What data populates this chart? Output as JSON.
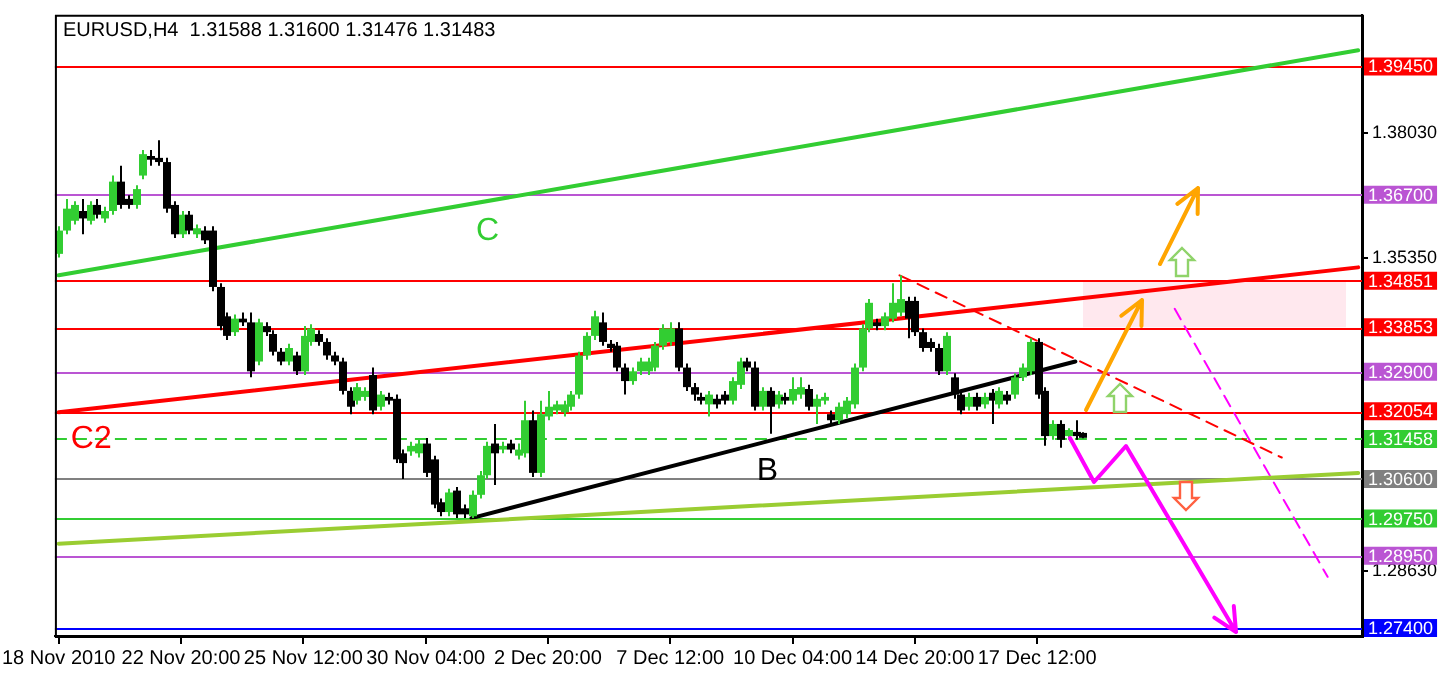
{
  "chart_data": {
    "type": "candlestick",
    "title": "EURUSD,H4  1.31588 1.31600 1.31476 1.31483",
    "categories": [
      "18 Nov 2010",
      null,
      null,
      null,
      null,
      null,
      null,
      null,
      null,
      null,
      null,
      null,
      null,
      null,
      null,
      null,
      "22 Nov 20:00",
      null,
      null,
      null,
      null,
      null,
      null,
      null,
      null,
      null,
      null,
      null,
      null,
      null,
      null,
      null,
      "25 Nov 12:00",
      null,
      null,
      null,
      null,
      null,
      null,
      null,
      null,
      null,
      null,
      null,
      null,
      null,
      null,
      null,
      "30 Nov 04:00",
      null,
      null,
      null,
      null,
      null,
      null,
      null,
      null,
      null,
      null,
      null,
      null,
      null,
      null,
      null,
      "2 Dec 20:00",
      null,
      null,
      null,
      null,
      null,
      null,
      null,
      null,
      null,
      null,
      null,
      null,
      null,
      null,
      null,
      "7 Dec 12:00",
      null,
      null,
      null,
      null,
      null,
      null,
      null,
      null,
      null,
      null,
      null,
      null,
      null,
      null,
      null,
      "10 Dec 04:00",
      null,
      null,
      null,
      null,
      null,
      null,
      null,
      null,
      null,
      null,
      null,
      null,
      null,
      null,
      null,
      "14 Dec 20:00",
      null,
      null,
      null,
      null,
      null,
      null,
      null,
      null,
      null,
      null,
      null,
      null,
      null,
      null,
      null,
      "17 Dec 12:00",
      null,
      null,
      null,
      null,
      null,
      null,
      null,
      null,
      null,
      null,
      null,
      null,
      null,
      null,
      null,
      null,
      null,
      null,
      null,
      null,
      null,
      null,
      null,
      null,
      null,
      null,
      null,
      null,
      null,
      null,
      null,
      null,
      null,
      null,
      null,
      null,
      null,
      null,
      null,
      null,
      null,
      null
    ],
    "ohlc": [
      [
        1.3543,
        1.3602,
        1.3535,
        1.3593
      ],
      [
        1.3593,
        1.3661,
        1.3585,
        1.364
      ],
      [
        1.3614,
        1.3656,
        1.3606,
        1.3648
      ],
      [
        1.3635,
        1.3661,
        1.3585,
        1.3619
      ],
      [
        1.3614,
        1.3656,
        1.3606,
        1.3648
      ],
      [
        1.3648,
        1.3661,
        1.3619,
        1.3627
      ],
      [
        1.3619,
        1.3644,
        1.361,
        1.3635
      ],
      [
        1.3635,
        1.3711,
        1.3627,
        1.3698
      ],
      [
        1.3698,
        1.3732,
        1.364,
        1.3648
      ],
      [
        1.3661,
        1.3669,
        1.364,
        1.3648
      ],
      [
        1.3648,
        1.369,
        1.364,
        1.3682
      ],
      [
        1.3711,
        1.3766,
        1.3703,
        1.3757
      ],
      [
        1.3753,
        1.3766,
        1.3732,
        1.3745
      ],
      [
        1.3749,
        1.3787,
        1.3732,
        1.374
      ],
      [
        1.374,
        1.3749,
        1.3631,
        1.364
      ],
      [
        1.3648,
        1.3656,
        1.3577,
        1.3585
      ],
      [
        1.3585,
        1.3635,
        1.3577,
        1.3627
      ],
      [
        1.3627,
        1.3635,
        1.3585,
        1.3593
      ],
      [
        1.3585,
        1.3606,
        1.3577,
        1.3598
      ],
      [
        1.3593,
        1.3602,
        1.3564,
        1.3572
      ],
      [
        1.3593,
        1.3602,
        1.3463,
        1.3472
      ],
      [
        1.3472,
        1.348,
        1.3379,
        1.3388
      ],
      [
        1.3409,
        1.3417,
        1.3358,
        1.3367
      ],
      [
        1.3375,
        1.3413,
        1.3367,
        1.3404
      ],
      [
        1.3404,
        1.3417,
        1.3388,
        1.3396
      ],
      [
        1.3396,
        1.3417,
        1.3278,
        1.3291
      ],
      [
        1.3312,
        1.3404,
        1.3304,
        1.3396
      ],
      [
        1.3388,
        1.3396,
        1.3367,
        1.3375
      ],
      [
        1.3371,
        1.3379,
        1.3325,
        1.3333
      ],
      [
        1.3333,
        1.3341,
        1.3304,
        1.3312
      ],
      [
        1.3312,
        1.335,
        1.3304,
        1.3341
      ],
      [
        1.3325,
        1.3333,
        1.3283,
        1.3291
      ],
      [
        1.3291,
        1.3388,
        1.3283,
        1.3367
      ],
      [
        1.3354,
        1.3392,
        1.3346,
        1.3383
      ],
      [
        1.3371,
        1.3379,
        1.3346,
        1.3354
      ],
      [
        1.3354,
        1.3362,
        1.3316,
        1.3325
      ],
      [
        1.3325,
        1.3333,
        1.3304,
        1.3312
      ],
      [
        1.3312,
        1.332,
        1.3241,
        1.3249
      ],
      [
        1.3249,
        1.3257,
        1.3199,
        1.3215
      ],
      [
        1.3228,
        1.3266,
        1.322,
        1.3257
      ],
      [
        1.3236,
        1.3257,
        1.3228,
        1.3249
      ],
      [
        1.3283,
        1.3299,
        1.3199,
        1.3207
      ],
      [
        1.3215,
        1.3249,
        1.3207,
        1.3241
      ],
      [
        1.3236,
        1.3245,
        1.322,
        1.3228
      ],
      [
        1.3232,
        1.3241,
        1.3094,
        1.3102
      ],
      [
        1.3115,
        1.3123,
        1.306,
        1.3094
      ],
      [
        1.3119,
        1.314,
        1.311,
        1.3131
      ],
      [
        1.3115,
        1.3144,
        1.3106,
        1.3136
      ],
      [
        1.3136,
        1.3148,
        1.3064,
        1.3073
      ],
      [
        1.3102,
        1.311,
        1.2997,
        1.3005
      ],
      [
        1.301,
        1.3018,
        1.298,
        1.2989
      ],
      [
        1.2989,
        1.3039,
        1.298,
        1.3031
      ],
      [
        1.3035,
        1.3043,
        1.2976,
        1.2984
      ],
      [
        1.2997,
        1.3005,
        1.2976,
        1.2984
      ],
      [
        1.298,
        1.3035,
        1.2976,
        1.3026
      ],
      [
        1.3026,
        1.3077,
        1.3018,
        1.3068
      ],
      [
        1.3068,
        1.314,
        1.306,
        1.3131
      ],
      [
        1.3136,
        1.3178,
        1.3047,
        1.3115
      ],
      [
        1.3123,
        1.314,
        1.3115,
        1.3131
      ],
      [
        1.3136,
        1.3144,
        1.3115,
        1.3123
      ],
      [
        1.311,
        1.3136,
        1.3102,
        1.3123
      ],
      [
        1.3115,
        1.3228,
        1.3106,
        1.3186
      ],
      [
        1.3186,
        1.3207,
        1.3064,
        1.3073
      ],
      [
        1.3073,
        1.3228,
        1.3064,
        1.3199
      ],
      [
        1.3194,
        1.3249,
        1.3186,
        1.3215
      ],
      [
        1.3207,
        1.3228,
        1.3199,
        1.322
      ],
      [
        1.3203,
        1.3228,
        1.3194,
        1.322
      ],
      [
        1.3215,
        1.3249,
        1.3207,
        1.3241
      ],
      [
        1.3241,
        1.3333,
        1.3232,
        1.3325
      ],
      [
        1.3325,
        1.3375,
        1.3316,
        1.3367
      ],
      [
        1.3367,
        1.3421,
        1.3358,
        1.3409
      ],
      [
        1.3396,
        1.3417,
        1.3346,
        1.3354
      ],
      [
        1.335,
        1.3358,
        1.3333,
        1.3341
      ],
      [
        1.3346,
        1.3354,
        1.3291,
        1.3299
      ],
      [
        1.3299,
        1.3308,
        1.3241,
        1.327
      ],
      [
        1.327,
        1.3299,
        1.3262,
        1.3291
      ],
      [
        1.3291,
        1.332,
        1.3283,
        1.3312
      ],
      [
        1.3291,
        1.332,
        1.3283,
        1.3312
      ],
      [
        1.3299,
        1.3354,
        1.3291,
        1.3346
      ],
      [
        1.3346,
        1.3392,
        1.3337,
        1.3383
      ],
      [
        1.3354,
        1.3396,
        1.3346,
        1.3383
      ],
      [
        1.3383,
        1.3396,
        1.3291,
        1.3299
      ],
      [
        1.3299,
        1.3308,
        1.3249,
        1.3257
      ],
      [
        1.3257,
        1.3266,
        1.3228,
        1.3241
      ],
      [
        1.3236,
        1.3245,
        1.322,
        1.3228
      ],
      [
        1.322,
        1.3249,
        1.3194,
        1.3241
      ],
      [
        1.3232,
        1.3241,
        1.3211,
        1.322
      ],
      [
        1.3241,
        1.3249,
        1.322,
        1.3228
      ],
      [
        1.3228,
        1.3278,
        1.322,
        1.327
      ],
      [
        1.3262,
        1.332,
        1.3253,
        1.3312
      ],
      [
        1.3312,
        1.332,
        1.3291,
        1.3299
      ],
      [
        1.3299,
        1.3312,
        1.3207,
        1.3215
      ],
      [
        1.3215,
        1.3257,
        1.3207,
        1.3249
      ],
      [
        1.3249,
        1.3257,
        1.3157,
        1.3215
      ],
      [
        1.322,
        1.3249,
        1.3211,
        1.3241
      ],
      [
        1.3236,
        1.3245,
        1.322,
        1.3228
      ],
      [
        1.3228,
        1.3278,
        1.322,
        1.3253
      ],
      [
        1.3241,
        1.3278,
        1.3232,
        1.3257
      ],
      [
        1.3253,
        1.3262,
        1.3207,
        1.3215
      ],
      [
        1.3215,
        1.3241,
        1.3178,
        1.3232
      ],
      [
        1.3228,
        1.3245,
        1.322,
        1.3236
      ],
      [
        1.3199,
        1.3207,
        1.3178,
        1.3186
      ],
      [
        1.3186,
        1.3224,
        1.3178,
        1.3215
      ],
      [
        1.3199,
        1.3236,
        1.319,
        1.3228
      ],
      [
        1.322,
        1.3308,
        1.3211,
        1.3299
      ],
      [
        1.3299,
        1.3392,
        1.3291,
        1.3383
      ],
      [
        1.3383,
        1.3446,
        1.3375,
        1.3438
      ],
      [
        1.3396,
        1.3404,
        1.3379,
        1.3388
      ],
      [
        1.3388,
        1.3417,
        1.3379,
        1.3409
      ],
      [
        1.3404,
        1.348,
        1.3396,
        1.3438
      ],
      [
        1.3417,
        1.3497,
        1.3409,
        1.3446
      ],
      [
        1.3442,
        1.3451,
        1.3362,
        1.3404
      ],
      [
        1.3442,
        1.3451,
        1.3367,
        1.3375
      ],
      [
        1.3375,
        1.3383,
        1.3333,
        1.3341
      ],
      [
        1.3354,
        1.3362,
        1.3333,
        1.3341
      ],
      [
        1.3341,
        1.335,
        1.3283,
        1.3291
      ],
      [
        1.3291,
        1.3375,
        1.3283,
        1.3367
      ],
      [
        1.3278,
        1.3287,
        1.3232,
        1.3241
      ],
      [
        1.3241,
        1.3249,
        1.3199,
        1.3207
      ],
      [
        1.3215,
        1.3245,
        1.3207,
        1.3236
      ],
      [
        1.3236,
        1.3245,
        1.3207,
        1.3215
      ],
      [
        1.322,
        1.3245,
        1.3211,
        1.3236
      ],
      [
        1.3245,
        1.3253,
        1.3178,
        1.3228
      ],
      [
        1.322,
        1.3257,
        1.3211,
        1.3249
      ],
      [
        1.3241,
        1.3249,
        1.322,
        1.3228
      ],
      [
        1.3241,
        1.3287,
        1.3232,
        1.3278
      ],
      [
        1.3278,
        1.3308,
        1.327,
        1.3299
      ],
      [
        1.3291,
        1.3362,
        1.3283,
        1.3354
      ],
      [
        1.3354,
        1.3362,
        1.3232,
        1.3241
      ],
      [
        1.3249,
        1.3257,
        1.3131,
        1.3152
      ],
      [
        1.3152,
        1.3186,
        1.3144,
        1.3178
      ],
      [
        1.3178,
        1.3186,
        1.3127,
        1.3144
      ],
      [
        1.3152,
        1.3169,
        1.3144,
        1.3165
      ],
      [
        1.3161,
        1.3186,
        1.3144,
        1.3152
      ],
      [
        1.31588,
        1.316,
        1.31476,
        1.31483
      ],
      null,
      null,
      null,
      null,
      null,
      null,
      null,
      null,
      null,
      null,
      null,
      null,
      null,
      null,
      null,
      null,
      null,
      null,
      null,
      null,
      null,
      null,
      null,
      null,
      null,
      null,
      null,
      null,
      null,
      null,
      null,
      null,
      null,
      null,
      null,
      null
    ],
    "colors": [
      "#32cd32",
      "#32cd32",
      "#32cd32",
      "#000000",
      "#32cd32",
      "#000000",
      "#32cd32",
      "#32cd32",
      "#000000",
      "#000000",
      "#32cd32",
      "#32cd32",
      "#000000",
      "#000000",
      "#000000",
      "#000000",
      "#32cd32",
      "#000000",
      "#32cd32",
      "#000000",
      "#000000",
      "#000000",
      "#000000",
      "#32cd32",
      "#000000",
      "#000000",
      "#32cd32",
      "#000000",
      "#000000",
      "#000000",
      "#32cd32",
      "#000000",
      "#32cd32",
      "#32cd32",
      "#000000",
      "#000000",
      "#000000",
      "#000000",
      "#000000",
      "#32cd32",
      "#32cd32",
      "#000000",
      "#32cd32",
      "#000000",
      "#000000",
      "#000000",
      "#32cd32",
      "#32cd32",
      "#000000",
      "#000000",
      "#000000",
      "#32cd32",
      "#000000",
      "#000000",
      "#32cd32",
      "#32cd32",
      "#32cd32",
      "#000000",
      "#32cd32",
      "#000000",
      "#32cd32",
      "#32cd32",
      "#000000",
      "#32cd32",
      "#32cd32",
      "#32cd32",
      "#32cd32",
      "#32cd32",
      "#32cd32",
      "#32cd32",
      "#32cd32",
      "#000000",
      "#000000",
      "#000000",
      "#000000",
      "#32cd32",
      "#32cd32",
      "#32cd32",
      "#32cd32",
      "#32cd32",
      "#32cd32",
      "#000000",
      "#000000",
      "#000000",
      "#000000",
      "#32cd32",
      "#000000",
      "#000000",
      "#32cd32",
      "#32cd32",
      "#000000",
      "#000000",
      "#32cd32",
      "#000000",
      "#32cd32",
      "#000000",
      "#32cd32",
      "#32cd32",
      "#000000",
      "#32cd32",
      "#32cd32",
      "#000000",
      "#32cd32",
      "#32cd32",
      "#32cd32",
      "#32cd32",
      "#32cd32",
      "#000000",
      "#32cd32",
      "#32cd32",
      "#32cd32",
      "#000000",
      "#000000",
      "#000000",
      "#000000",
      "#000000",
      "#32cd32",
      "#000000",
      "#000000",
      "#32cd32",
      "#000000",
      "#32cd32",
      "#000000",
      "#32cd32",
      "#000000",
      "#32cd32",
      "#32cd32",
      "#32cd32",
      "#000000",
      "#000000",
      "#32cd32",
      "#000000",
      "#32cd32",
      "#000000",
      "#000000",
      null,
      null,
      null,
      null,
      null,
      null,
      null,
      null,
      null,
      null,
      null,
      null,
      null,
      null,
      null,
      null,
      null,
      null,
      null,
      null,
      null,
      null,
      null,
      null,
      null,
      null,
      null,
      null,
      null,
      null,
      null,
      null,
      null,
      null,
      null,
      null
    ],
    "ylim": [
      1.2723,
      1.4056
    ],
    "yticks": [
      {
        "value": 1.3803,
        "label": "1.38030"
      },
      {
        "value": 1.3535,
        "label": "1.35350"
      },
      {
        "value": 1.2863,
        "label": "1.28630"
      }
    ],
    "series": [
      {
        "type": "line",
        "name": "C",
        "color": "#32cd32",
        "values": [
          1.3497,
          null,
          null,
          null,
          null,
          null,
          null,
          null,
          null,
          null,
          null,
          null,
          null,
          null,
          null,
          null,
          null,
          null,
          null,
          null,
          null,
          null,
          null,
          null,
          null,
          null,
          null,
          null,
          null,
          null,
          null,
          null,
          null,
          null,
          null,
          null,
          null,
          null,
          null,
          null,
          null,
          null,
          null,
          null,
          null,
          null,
          null,
          null,
          null,
          null,
          null,
          null,
          null,
          null,
          null,
          null,
          null,
          null,
          null,
          null,
          null,
          null,
          null,
          null,
          null,
          null,
          null,
          null,
          null,
          null,
          null,
          null,
          null,
          null,
          null,
          null,
          null,
          null,
          null,
          null,
          null,
          null,
          null,
          null,
          null,
          null,
          null,
          null,
          null,
          null,
          null,
          null,
          null,
          null,
          null,
          null,
          null,
          null,
          null,
          null,
          null,
          null,
          null,
          null,
          null,
          null,
          null,
          null,
          null,
          null,
          null,
          null,
          null,
          null,
          null,
          null,
          null,
          null,
          null,
          null,
          null,
          null,
          null,
          null,
          null,
          null,
          null,
          null,
          null,
          null,
          null,
          null,
          null,
          null,
          null,
          null,
          null,
          null,
          null,
          null,
          null,
          null,
          null,
          null,
          null,
          null,
          null,
          null,
          null,
          null,
          null,
          null,
          null,
          null,
          null,
          null,
          null,
          null,
          null,
          null,
          null,
          null,
          null,
          null,
          null,
          null,
          null,
          null,
          null,
          null,
          1.398
        ]
      },
      {
        "type": "line",
        "name": "C2",
        "color": "#ff0000",
        "values": [
          1.3203,
          null,
          null,
          null,
          null,
          null,
          null,
          null,
          null,
          null,
          null,
          null,
          null,
          null,
          null,
          null,
          null,
          null,
          null,
          null,
          null,
          null,
          null,
          null,
          null,
          null,
          null,
          null,
          null,
          null,
          null,
          null,
          null,
          null,
          null,
          null,
          null,
          null,
          null,
          null,
          null,
          null,
          null,
          null,
          null,
          null,
          null,
          null,
          null,
          null,
          null,
          null,
          null,
          null,
          null,
          null,
          null,
          null,
          null,
          null,
          null,
          null,
          null,
          null,
          null,
          null,
          null,
          null,
          null,
          null,
          null,
          null,
          null,
          null,
          null,
          null,
          null,
          null,
          null,
          null,
          null,
          null,
          null,
          null,
          null,
          null,
          null,
          null,
          null,
          null,
          null,
          null,
          null,
          null,
          null,
          null,
          null,
          null,
          null,
          null,
          null,
          null,
          null,
          null,
          null,
          null,
          null,
          null,
          null,
          null,
          null,
          null,
          null,
          null,
          null,
          null,
          null,
          null,
          null,
          null,
          null,
          null,
          null,
          null,
          null,
          null,
          null,
          null,
          null,
          null,
          null,
          null,
          null,
          null,
          null,
          null,
          null,
          null,
          null,
          null,
          null,
          null,
          null,
          null,
          null,
          null,
          null,
          null,
          null,
          null,
          null,
          null,
          null,
          null,
          null,
          null,
          null,
          null,
          null,
          null,
          null,
          null,
          null,
          null,
          null,
          null,
          null,
          null,
          null,
          null,
          1.3514
        ]
      },
      {
        "type": "line",
        "color": "#9acd32",
        "values": [
          1.2921,
          null,
          null,
          null,
          null,
          null,
          null,
          null,
          null,
          null,
          null,
          null,
          null,
          null,
          null,
          null,
          null,
          null,
          null,
          null,
          null,
          null,
          null,
          null,
          null,
          null,
          null,
          null,
          null,
          null,
          null,
          null,
          null,
          null,
          null,
          null,
          null,
          null,
          null,
          null,
          null,
          null,
          null,
          null,
          null,
          null,
          null,
          null,
          null,
          null,
          null,
          null,
          null,
          null,
          null,
          null,
          null,
          null,
          null,
          null,
          null,
          null,
          null,
          null,
          null,
          null,
          null,
          null,
          null,
          null,
          null,
          null,
          null,
          null,
          null,
          null,
          null,
          null,
          null,
          null,
          null,
          null,
          null,
          null,
          null,
          null,
          null,
          null,
          null,
          null,
          null,
          null,
          null,
          null,
          null,
          null,
          null,
          null,
          null,
          null,
          null,
          null,
          null,
          null,
          null,
          null,
          null,
          null,
          null,
          null,
          null,
          null,
          null,
          null,
          null,
          null,
          null,
          null,
          null,
          null,
          null,
          null,
          null,
          null,
          null,
          null,
          null,
          null,
          null,
          null,
          null,
          null,
          null,
          null,
          null,
          null,
          null,
          null,
          null,
          null,
          null,
          null,
          null,
          null,
          null,
          null,
          null,
          null,
          null,
          null,
          null,
          null,
          null,
          null,
          null,
          null,
          null,
          null,
          null,
          null,
          null,
          null,
          null,
          null,
          null,
          null,
          null,
          null,
          null,
          null,
          1.3073
        ]
      },
      {
        "type": "line",
        "name": "B",
        "color": "#000000",
        "values": [
          null,
          null,
          null,
          null,
          null,
          null,
          null,
          null,
          null,
          null,
          null,
          null,
          null,
          null,
          null,
          null,
          null,
          null,
          null,
          null,
          null,
          null,
          null,
          null,
          null,
          null,
          null,
          null,
          null,
          null,
          null,
          null,
          null,
          null,
          null,
          null,
          null,
          null,
          null,
          null,
          null,
          null,
          null,
          null,
          null,
          null,
          null,
          null,
          null,
          null,
          null,
          null,
          null,
          null,
          1.2976,
          null,
          null,
          null,
          null,
          null,
          null,
          null,
          null,
          null,
          null,
          null,
          null,
          null,
          null,
          null,
          null,
          null,
          null,
          null,
          null,
          null,
          null,
          null,
          null,
          null,
          null,
          null,
          null,
          null,
          null,
          null,
          null,
          null,
          null,
          null,
          null,
          null,
          null,
          null,
          null,
          null,
          null,
          null,
          null,
          null,
          null,
          null,
          null,
          null,
          null,
          null,
          null,
          null,
          null,
          null,
          null,
          null,
          null,
          null,
          null,
          null,
          null,
          null,
          null,
          null,
          null,
          null,
          null,
          null,
          null,
          null,
          null,
          null,
          null,
          null,
          null,
          null,
          null,
          1.3312,
          null,
          null,
          null,
          null,
          null,
          null,
          null,
          null,
          null,
          null,
          null,
          null,
          null,
          null,
          null,
          null,
          null,
          null,
          null,
          null,
          null,
          null,
          null,
          null,
          null,
          null,
          null,
          null,
          null,
          null,
          null,
          null,
          null,
          null,
          null,
          null,
          null
        ]
      },
      {
        "type": "line",
        "color": "#ff0000",
        "line_style": "dashed",
        "values": [
          null,
          null,
          null,
          null,
          null,
          null,
          null,
          null,
          null,
          null,
          null,
          null,
          null,
          null,
          null,
          null,
          null,
          null,
          null,
          null,
          null,
          null,
          null,
          null,
          null,
          null,
          null,
          null,
          null,
          null,
          null,
          null,
          null,
          null,
          null,
          null,
          null,
          null,
          null,
          null,
          null,
          null,
          null,
          null,
          null,
          null,
          null,
          null,
          null,
          null,
          null,
          null,
          null,
          null,
          null,
          null,
          null,
          null,
          null,
          null,
          null,
          null,
          null,
          null,
          null,
          null,
          null,
          null,
          null,
          null,
          null,
          null,
          null,
          null,
          null,
          null,
          null,
          null,
          null,
          null,
          null,
          null,
          null,
          null,
          null,
          null,
          null,
          null,
          null,
          null,
          null,
          null,
          null,
          null,
          null,
          null,
          null,
          null,
          null,
          null,
          null,
          null,
          null,
          null,
          null,
          null,
          null,
          null,
          null,
          null,
          1.3497,
          null,
          null,
          null,
          null,
          null,
          null,
          null,
          null,
          null,
          null,
          null,
          null,
          null,
          null,
          null,
          null,
          null,
          null,
          null,
          null,
          null,
          null,
          null,
          null,
          null,
          null,
          null,
          null,
          null,
          null,
          null,
          null,
          null,
          null,
          null,
          null,
          null,
          null,
          null,
          null,
          null,
          null,
          null,
          null,
          null,
          null,
          null,
          null,
          null,
          1.3106,
          null,
          null,
          null,
          null,
          null,
          null,
          null,
          null,
          null,
          null
        ]
      },
      {
        "type": "line",
        "color": "#ff00ff",
        "line_style": "dashed",
        "values": [
          null,
          null,
          null,
          null,
          null,
          null,
          null,
          null,
          null,
          null,
          null,
          null,
          null,
          null,
          null,
          null,
          null,
          null,
          null,
          null,
          null,
          null,
          null,
          null,
          null,
          null,
          null,
          null,
          null,
          null,
          null,
          null,
          null,
          null,
          null,
          null,
          null,
          null,
          null,
          null,
          null,
          null,
          null,
          null,
          null,
          null,
          null,
          null,
          null,
          null,
          null,
          null,
          null,
          null,
          null,
          null,
          null,
          null,
          null,
          null,
          null,
          null,
          null,
          null,
          null,
          null,
          null,
          null,
          null,
          null,
          null,
          null,
          null,
          null,
          null,
          null,
          null,
          null,
          null,
          null,
          null,
          null,
          null,
          null,
          null,
          null,
          null,
          null,
          null,
          null,
          null,
          null,
          null,
          null,
          null,
          null,
          null,
          null,
          null,
          null,
          null,
          null,
          null,
          null,
          null,
          null,
          null,
          null,
          null,
          null,
          null,
          null,
          null,
          null,
          null,
          null,
          null,
          null,
          null,
          null,
          null,
          null,
          null,
          null,
          null,
          null,
          null,
          null,
          null,
          null,
          null,
          null,
          null,
          null,
          null,
          null,
          null,
          null,
          null,
          null,
          null,
          null,
          null,
          null,
          null,
          null,
          1.3425,
          null,
          null,
          null,
          null,
          null,
          null,
          null,
          null,
          null,
          null,
          null,
          null,
          null,
          null,
          null,
          null,
          null,
          null,
          null,
          1.285,
          null,
          null,
          null,
          null
        ]
      }
    ],
    "ref_lines": [
      {
        "axis": "y",
        "value": 1.3945,
        "label": "1.39450",
        "color": "#ff0000"
      },
      {
        "axis": "y",
        "value": 1.367,
        "label": "1.36700",
        "color": "#ba55d3"
      },
      {
        "axis": "y",
        "value": 1.34851,
        "label": "1.34851",
        "color": "#ff0000"
      },
      {
        "axis": "y",
        "value": 1.33853,
        "label": "1.33853",
        "color": "#ff0000"
      },
      {
        "axis": "y",
        "value": 1.329,
        "label": "1.32900",
        "color": "#ba55d3"
      },
      {
        "axis": "y",
        "value": 1.32054,
        "label": "1.32054",
        "color": "#ff0000"
      },
      {
        "axis": "y",
        "value": 1.31458,
        "label": "1.31458",
        "color": "#32cd32",
        "line_style": "dashed"
      },
      {
        "axis": "y",
        "value": 1.306,
        "label": "1.30600",
        "color": "#808080"
      },
      {
        "axis": "y",
        "value": 1.2975,
        "label": "1.29750",
        "color": "#32cd32"
      },
      {
        "axis": "y",
        "value": 1.2895,
        "label": "1.28950",
        "color": "#ba55d3"
      },
      {
        "axis": "y",
        "value": 1.274,
        "label": "1.27400",
        "color": "#0000ff"
      }
    ],
    "bands": [
      {
        "axis": "y",
        "from": 1.33853,
        "to": 1.34851,
        "color": "#ffe8ee"
      }
    ]
  }
}
